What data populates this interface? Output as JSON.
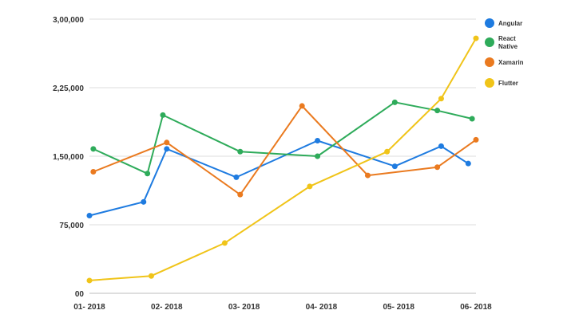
{
  "chart_data": {
    "type": "line",
    "title": "",
    "xlabel": "",
    "ylabel": "",
    "ylim": [
      0,
      300000
    ],
    "yticks": [
      0,
      75000,
      150000,
      225000,
      300000
    ],
    "ytick_labels": [
      "00",
      "75,000",
      "1,50,000",
      "2,25,000",
      "3,00,000"
    ],
    "xlim": [
      1,
      6
    ],
    "xticks": [
      1,
      2,
      3,
      4,
      5,
      6
    ],
    "xtick_labels": [
      "01- 2018",
      "02- 2018",
      "03- 2018",
      "04- 2018",
      "05- 2018",
      "06- 2018"
    ],
    "grid": "horizontal",
    "legend_position": "right",
    "series": [
      {
        "name": "Angular",
        "color": "#1e7be0",
        "x": [
          1,
          1.7,
          2.0,
          2.9,
          3.95,
          4.95,
          5.55,
          5.9
        ],
        "y": [
          85000,
          100000,
          158000,
          127000,
          167000,
          139000,
          161000,
          142000
        ]
      },
      {
        "name": "React Native",
        "color": "#2eab5a",
        "x": [
          1.05,
          1.75,
          1.95,
          2.95,
          3.95,
          4.95,
          5.5,
          5.95
        ],
        "y": [
          158000,
          131000,
          195000,
          155000,
          150000,
          209000,
          200000,
          191000
        ]
      },
      {
        "name": "Xamarin",
        "color": "#ea7a1f",
        "x": [
          1.05,
          2.0,
          2.95,
          3.75,
          4.6,
          5.5,
          6.0
        ],
        "y": [
          133000,
          165000,
          108000,
          205000,
          129000,
          138000,
          168000
        ]
      },
      {
        "name": "Flutter",
        "color": "#f0c419",
        "x": [
          1.0,
          1.8,
          2.75,
          3.85,
          4.85,
          5.55,
          6.0
        ],
        "y": [
          14000,
          19000,
          55000,
          117000,
          155000,
          213000,
          279000
        ]
      }
    ]
  }
}
